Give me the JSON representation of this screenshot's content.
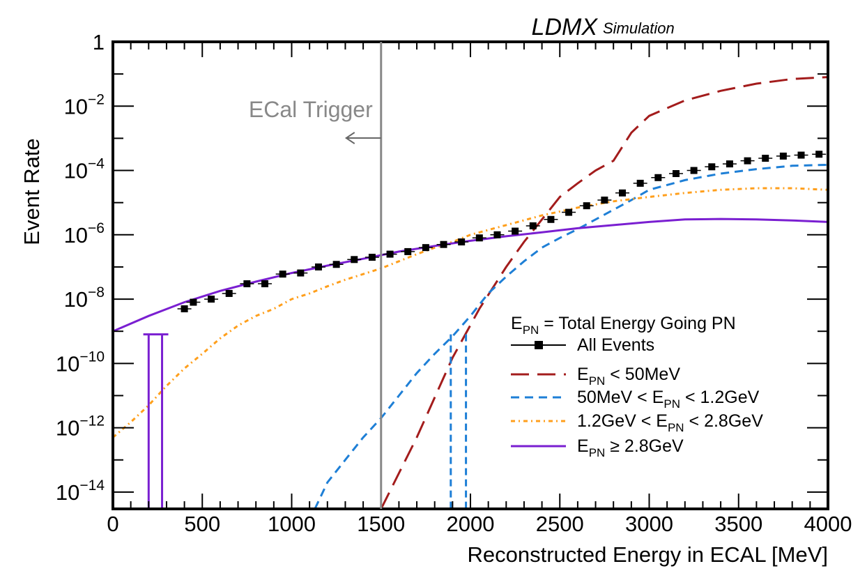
{
  "chart_data": {
    "type": "line",
    "experiment": "LDMX",
    "experiment_suffix": "Simulation",
    "xlabel": "Reconstructed Energy in ECAL [MeV]",
    "ylabel": "Event Rate",
    "xlim": [
      0,
      4000
    ],
    "ylim": [
      3e-15,
      1
    ],
    "y_scale": "log",
    "x_ticks": [
      0,
      500,
      1000,
      1500,
      2000,
      2500,
      3000,
      3500,
      4000
    ],
    "y_tick_labels": [
      {
        "value": 1,
        "base": "1",
        "exp": ""
      },
      {
        "value": 0.01,
        "base": "10",
        "exp": "−2"
      },
      {
        "value": 0.0001,
        "base": "10",
        "exp": "−4"
      },
      {
        "value": 1e-06,
        "base": "10",
        "exp": "−6"
      },
      {
        "value": 1e-08,
        "base": "10",
        "exp": "−8"
      },
      {
        "value": 1e-10,
        "base": "10",
        "exp": "−10"
      },
      {
        "value": 1e-12,
        "base": "10",
        "exp": "−12"
      },
      {
        "value": 1e-14,
        "base": "10",
        "exp": "−14"
      }
    ],
    "annotation": {
      "text": "ECal Trigger",
      "x": 1500,
      "color": "#888888"
    },
    "legend_header": {
      "E": "E",
      "sub": "PN",
      "rest": " = Total Energy Going PN"
    },
    "series": [
      {
        "name": "All Events",
        "color": "#000000",
        "style": "markers",
        "x": [
          400,
          450,
          550,
          650,
          750,
          850,
          950,
          1050,
          1150,
          1250,
          1350,
          1450,
          1550,
          1650,
          1750,
          1850,
          1950,
          2050,
          2150,
          2250,
          2350,
          2450,
          2550,
          2650,
          2750,
          2850,
          2950,
          3050,
          3150,
          3250,
          3350,
          3450,
          3550,
          3650,
          3750,
          3850,
          3950
        ],
        "y": [
          5e-09,
          8e-09,
          1e-08,
          1.5e-08,
          3e-08,
          3e-08,
          6e-08,
          6.5e-08,
          1e-07,
          1.2e-07,
          1.7e-07,
          2e-07,
          2.5e-07,
          3e-07,
          4e-07,
          5e-07,
          6e-07,
          8e-07,
          1e-06,
          1.3e-06,
          1.9e-06,
          3e-06,
          5e-06,
          8e-06,
          1.2e-05,
          2e-05,
          4e-05,
          6e-05,
          8e-05,
          0.0001,
          0.00013,
          0.00016,
          0.0002,
          0.00024,
          0.00028,
          0.0003,
          0.00032
        ]
      },
      {
        "name_parts": {
          "E": "E",
          "sub": "PN",
          "rest": " < 50MeV"
        },
        "color": "#a31c1c",
        "style": "dashed-long",
        "x": [
          1500,
          1700,
          1900,
          2050,
          2200,
          2300,
          2400,
          2500,
          2600,
          2700,
          2800,
          2900,
          3000,
          3200,
          3400,
          3600,
          3800,
          4000
        ],
        "y": [
          3e-15,
          5e-13,
          1.5e-10,
          5e-09,
          1e-07,
          6e-07,
          3e-06,
          1.5e-05,
          4e-05,
          0.0001,
          0.0002,
          0.0015,
          0.005,
          0.015,
          0.03,
          0.05,
          0.07,
          0.08
        ]
      },
      {
        "name_parts": {
          "pre": "50MeV < ",
          "E": "E",
          "sub": "PN",
          "rest": " < 1.2GeV"
        },
        "color": "#1e7fd6",
        "style": "dashed",
        "x": [
          1130,
          1200,
          1300,
          1400,
          1500,
          1600,
          1700,
          1800,
          1900,
          2000,
          2100,
          2200,
          2300,
          2400,
          2500,
          2600,
          2700,
          2800,
          2900,
          3000,
          3200,
          3400,
          3600,
          3800,
          4000
        ],
        "y": [
          3e-15,
          2e-14,
          1e-13,
          5e-13,
          2e-12,
          1e-11,
          5e-11,
          2e-10,
          7e-10,
          3e-09,
          1.5e-08,
          5e-08,
          1.5e-07,
          4e-07,
          8e-07,
          1.5e-06,
          3e-06,
          6e-06,
          1.2e-05,
          2.5e-05,
          5e-05,
          8e-05,
          0.00011,
          0.00014,
          0.00015
        ]
      },
      {
        "name_parts": {
          "pre": "1.2GeV < ",
          "E": "E",
          "sub": "PN",
          "rest": " < 2.8GeV"
        },
        "color": "#ff9f1c",
        "style": "dash-dot",
        "x": [
          0,
          100,
          200,
          300,
          400,
          500,
          600,
          700,
          800,
          900,
          1000,
          1100,
          1200,
          1300,
          1400,
          1500,
          1600,
          1700,
          1800,
          1900,
          2000,
          2200,
          2400,
          2600,
          2800,
          3000,
          3200,
          3400,
          3600,
          3800,
          4000
        ],
        "y": [
          5e-13,
          1.5e-12,
          5e-12,
          2e-11,
          7e-11,
          2e-10,
          6e-10,
          1.5e-09,
          3e-09,
          5e-09,
          1e-08,
          1.5e-08,
          2.5e-08,
          4e-08,
          6e-08,
          9e-08,
          1.5e-07,
          2.5e-07,
          4e-07,
          6e-07,
          1e-06,
          2e-06,
          4e-06,
          7e-06,
          1.1e-05,
          1.5e-05,
          2e-05,
          2.5e-05,
          2.8e-05,
          2.8e-05,
          2.5e-05
        ]
      },
      {
        "name_parts": {
          "E": "E",
          "sub": "PN",
          "rest": " ≥ 2.8GeV"
        },
        "color": "#7a1fd1",
        "style": "solid",
        "x": [
          0,
          200,
          400,
          600,
          800,
          1000,
          1200,
          1400,
          1600,
          1800,
          2000,
          2200,
          2400,
          2600,
          2800,
          3000,
          3200,
          3400,
          3600,
          3800,
          4000
        ],
        "y": [
          1e-09,
          3e-09,
          8e-09,
          1.8e-08,
          3.5e-08,
          6.5e-08,
          1.1e-07,
          1.8e-07,
          3e-07,
          4.5e-07,
          6.5e-07,
          9e-07,
          1.2e-06,
          1.6e-06,
          2e-06,
          2.5e-06,
          3e-06,
          3.1e-06,
          3e-06,
          2.8e-06,
          2.5e-06
        ]
      }
    ]
  }
}
